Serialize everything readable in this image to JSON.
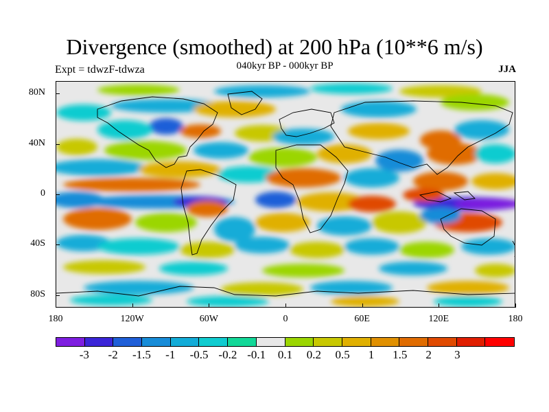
{
  "title": "Divergence (smoothed) at 200 hPa (10**6 m/s)",
  "subtitle": "040kyr BP - 000kyr BP",
  "left_label": "Expt = tdwzF-tdwza",
  "right_label": "JJA",
  "y_ticks": [
    {
      "label": "80N",
      "lat": 80
    },
    {
      "label": "40N",
      "lat": 40
    },
    {
      "label": "0",
      "lat": 0
    },
    {
      "label": "40S",
      "lat": -40
    },
    {
      "label": "80S",
      "lat": -80
    }
  ],
  "x_ticks": [
    {
      "label": "180",
      "lon": -180
    },
    {
      "label": "120W",
      "lon": -120
    },
    {
      "label": "60W",
      "lon": -60
    },
    {
      "label": "0",
      "lon": 0
    },
    {
      "label": "60E",
      "lon": 60
    },
    {
      "label": "120E",
      "lon": 120
    },
    {
      "label": "180",
      "lon": 180
    }
  ],
  "colorbar": {
    "colors": [
      "#7e1ee0",
      "#3b25d8",
      "#1f5fd8",
      "#178cd8",
      "#12acd8",
      "#10ccd0",
      "#12d898",
      "#e8e8e8",
      "#9bd600",
      "#c8c800",
      "#e0b000",
      "#e09000",
      "#e06c00",
      "#e04a00",
      "#e01e00",
      "#ff0000"
    ],
    "labels": [
      "-3",
      "-2",
      "-1.5",
      "-1",
      "-0.5",
      "-0.2",
      "-0.1",
      "0.1",
      "0.2",
      "0.5",
      "1",
      "1.5",
      "2",
      "3"
    ]
  },
  "map": {
    "extent": {
      "lon": [
        -180,
        180
      ],
      "lat": [
        -90,
        90
      ]
    },
    "background_color": "#e8e8e8"
  }
}
